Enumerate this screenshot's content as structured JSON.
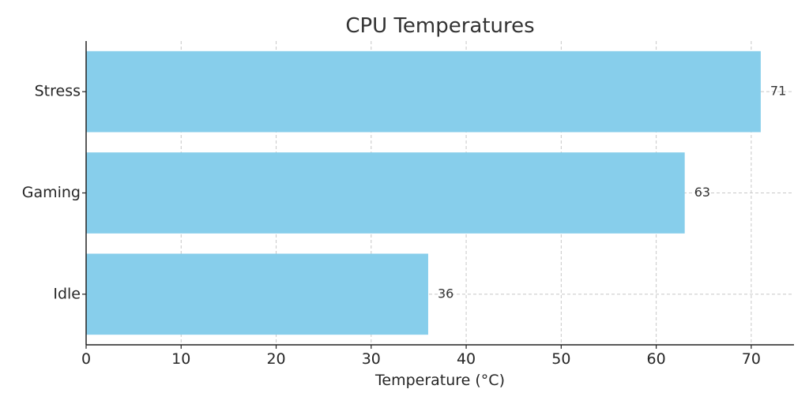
{
  "chart_data": {
    "type": "bar",
    "orientation": "horizontal",
    "title": "CPU Temperatures",
    "xlabel": "Temperature (°C)",
    "ylabel": "",
    "categories": [
      "Idle",
      "Gaming",
      "Stress"
    ],
    "values": [
      36,
      63,
      71
    ],
    "data_labels": [
      "36",
      "63",
      "71"
    ],
    "xlim": [
      0,
      74.5
    ],
    "xticks": [
      0,
      10,
      20,
      30,
      40,
      50,
      60,
      70
    ],
    "grid": true,
    "bar_color": "#87ceeb",
    "legend": "none"
  }
}
